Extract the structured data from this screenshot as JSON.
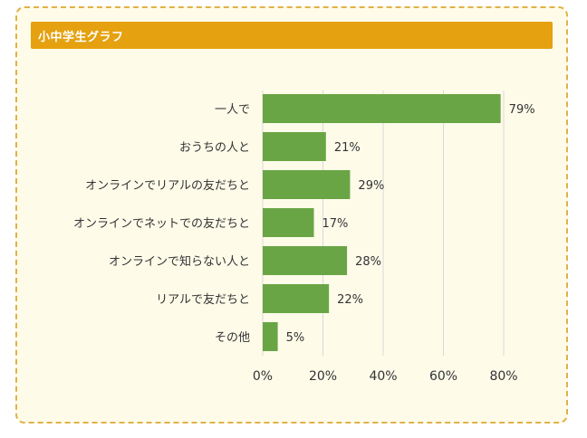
{
  "header": {
    "title": "小中学生グラフ"
  },
  "colors": {
    "header_bg": "#e5a10f",
    "card_bg": "#fefbe9",
    "card_border": "#e1b14a",
    "bar": "#6aa545",
    "grid": "#d9d9d9"
  },
  "chart_data": {
    "type": "bar",
    "orientation": "horizontal",
    "categories": [
      "一人で",
      "おうちの人と",
      "オンラインでリアルの友だちと",
      "オンラインでネットでの友だちと",
      "オンラインで知らない人と",
      "リアルで友だちと",
      "その他"
    ],
    "values": [
      79,
      21,
      29,
      17,
      28,
      22,
      5
    ],
    "value_labels": [
      "79%",
      "21%",
      "29%",
      "17%",
      "28%",
      "22%",
      "5%"
    ],
    "xlim": [
      0,
      80
    ],
    "x_ticks": [
      "0%",
      "20%",
      "40%",
      "60%",
      "80%"
    ],
    "grid": true,
    "legend": "none"
  }
}
